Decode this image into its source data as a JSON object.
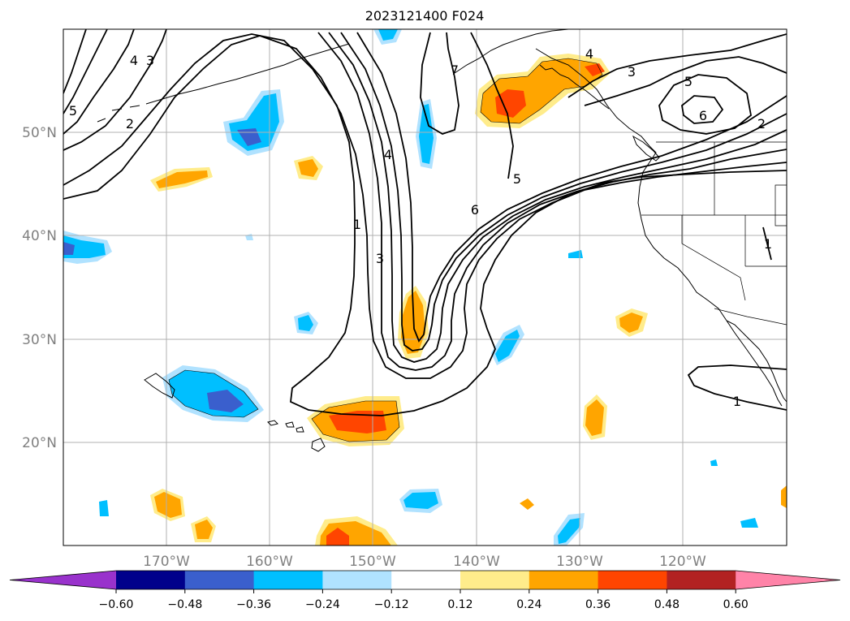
{
  "title": "2023121400 F024",
  "map": {
    "lon_range": [
      -180,
      -110
    ],
    "lat_range": [
      10,
      60
    ],
    "gridlines": true,
    "lat_labels": [
      "50°N",
      "40°N",
      "30°N",
      "20°N"
    ],
    "lon_labels": [
      "170°W",
      "160°W",
      "150°W",
      "140°W",
      "130°W",
      "120°W"
    ],
    "contour_labels": [
      "5",
      "4",
      "3",
      "2",
      "7",
      "4",
      "1",
      "3",
      "6",
      "5",
      "4",
      "3",
      "5",
      "6",
      "2",
      "1",
      "1"
    ]
  },
  "colorbar": {
    "ticks": [
      "−0.60",
      "−0.48",
      "−0.36",
      "−0.24",
      "−0.12",
      "0.12",
      "0.24",
      "0.36",
      "0.48",
      "0.60"
    ],
    "colors": [
      "#9932cc",
      "#00008b",
      "#3a5fcd",
      "#00bfff",
      "#b0e2ff",
      "#ffffff",
      "#ffec8b",
      "#ffa500",
      "#ff4500",
      "#b22222",
      "#ff83a8"
    ]
  }
}
